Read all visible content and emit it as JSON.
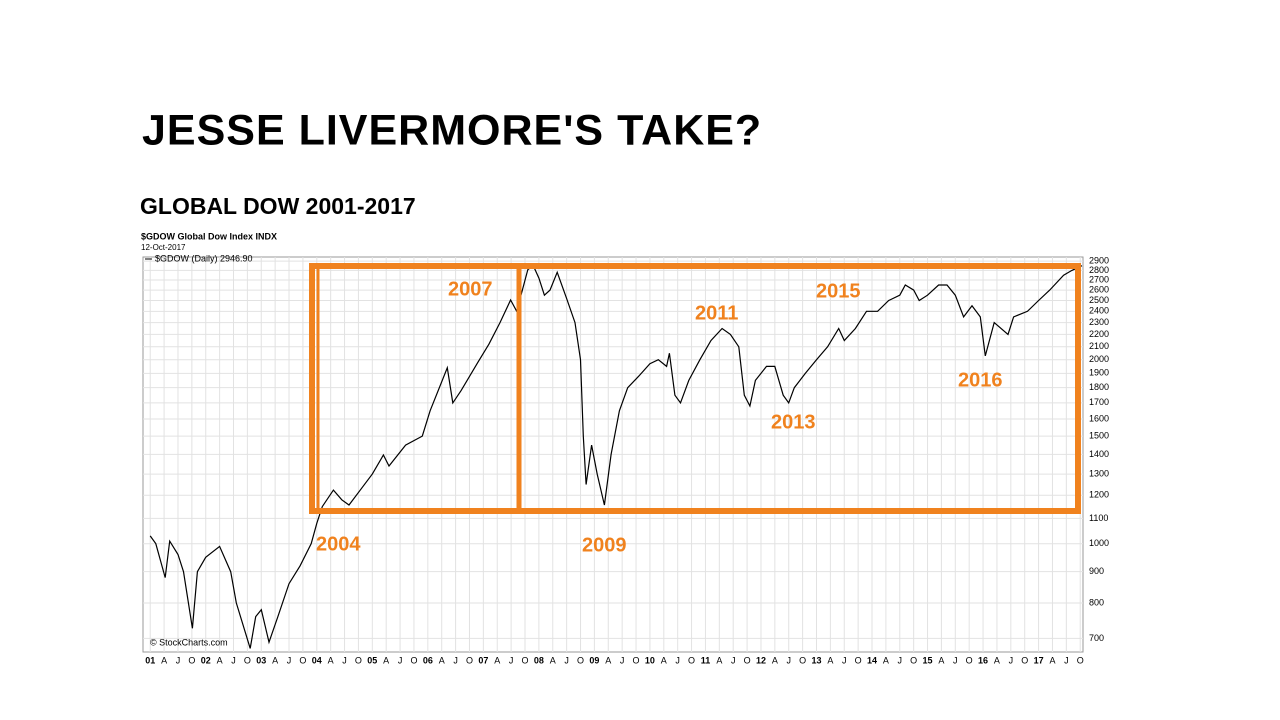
{
  "chart_data": {
    "type": "line",
    "title": "JESSE LIVERMORE'S TAKE?",
    "subtitle": "GLOBAL DOW 2001-2017",
    "header": "$GDOW Global Dow Index INDX",
    "date": "12-Oct-2017",
    "watermark": "© StockCharts.com",
    "annotations": [
      "2007",
      "2011",
      "2015",
      "2004",
      "2009",
      "2013",
      "2016"
    ],
    "log_scale": true,
    "grid": true,
    "x": [
      2001.0,
      2001.1,
      2001.27,
      2001.35,
      2001.5,
      2001.6,
      2001.76,
      2001.85,
      2002.0,
      2002.25,
      2002.45,
      2002.55,
      2002.8,
      2002.9,
      2003.0,
      2003.14,
      2003.3,
      2003.5,
      2003.7,
      2003.9,
      2004.0,
      2004.1,
      2004.3,
      2004.45,
      2004.58,
      2004.8,
      2005.0,
      2005.2,
      2005.3,
      2005.6,
      2005.9,
      2006.04,
      2006.35,
      2006.45,
      2006.6,
      2006.9,
      2007.1,
      2007.3,
      2007.49,
      2007.6,
      2007.8,
      2007.9,
      2008.0,
      2008.1,
      2008.2,
      2008.33,
      2008.5,
      2008.65,
      2008.75,
      2008.8,
      2008.85,
      2008.95,
      2009.05,
      2009.18,
      2009.3,
      2009.45,
      2009.6,
      2009.8,
      2010.0,
      2010.15,
      2010.3,
      2010.35,
      2010.45,
      2010.55,
      2010.7,
      2010.9,
      2011.1,
      2011.3,
      2011.45,
      2011.6,
      2011.7,
      2011.8,
      2011.9,
      2012.1,
      2012.25,
      2012.4,
      2012.5,
      2012.6,
      2012.8,
      2013.0,
      2013.2,
      2013.4,
      2013.5,
      2013.7,
      2013.9,
      2014.1,
      2014.3,
      2014.5,
      2014.6,
      2014.75,
      2014.85,
      2015.0,
      2015.2,
      2015.35,
      2015.5,
      2015.65,
      2015.8,
      2015.95,
      2016.04,
      2016.2,
      2016.45,
      2016.55,
      2016.8,
      2017.0,
      2017.2,
      2017.45,
      2017.6,
      2017.78
    ],
    "series": [
      {
        "name": "$GDOW (Daily) 2946.90",
        "color": "#000000",
        "values": [
          1030,
          1000,
          880,
          1010,
          960,
          900,
          727,
          900,
          950,
          990,
          900,
          800,
          674,
          760,
          780,
          690,
          760,
          860,
          920,
          1000,
          1080,
          1150,
          1224,
          1180,
          1157,
          1230,
          1300,
          1397,
          1340,
          1450,
          1500,
          1650,
          1940,
          1700,
          1780,
          1980,
          2120,
          2300,
          2505,
          2400,
          2807,
          2850,
          2720,
          2550,
          2600,
          2780,
          2520,
          2300,
          2000,
          1500,
          1250,
          1450,
          1300,
          1157,
          1400,
          1650,
          1800,
          1880,
          1970,
          2000,
          1950,
          2050,
          1750,
          1700,
          1850,
          2000,
          2150,
          2250,
          2200,
          2100,
          1750,
          1680,
          1850,
          1950,
          1950,
          1750,
          1700,
          1800,
          1900,
          2000,
          2100,
          2250,
          2150,
          2250,
          2400,
          2400,
          2500,
          2550,
          2650,
          2600,
          2500,
          2550,
          2650,
          2650,
          2550,
          2350,
          2450,
          2350,
          2029,
          2300,
          2200,
          2350,
          2400,
          2500,
          2600,
          2750,
          2800,
          2850
        ]
      }
    ],
    "xlim": [
      2000.87,
      2017.8
    ],
    "ylim": [
      665,
      2945
    ],
    "yticks": [
      700,
      800,
      900,
      1000,
      1100,
      1200,
      1300,
      1400,
      1500,
      1600,
      1700,
      1800,
      1900,
      2000,
      2100,
      2200,
      2300,
      2400,
      2500,
      2600,
      2700,
      2800,
      2900
    ],
    "xticks": [
      {
        "value": 2001,
        "label": "01"
      },
      {
        "value": 2001.25,
        "label": "A"
      },
      {
        "value": 2001.5,
        "label": "J"
      },
      {
        "value": 2001.75,
        "label": "O"
      },
      {
        "value": 2002,
        "label": "02"
      },
      {
        "value": 2002.25,
        "label": "A"
      },
      {
        "value": 2002.5,
        "label": "J"
      },
      {
        "value": 2002.75,
        "label": "O"
      },
      {
        "value": 2003,
        "label": "03"
      },
      {
        "value": 2003.25,
        "label": "A"
      },
      {
        "value": 2003.5,
        "label": "J"
      },
      {
        "value": 2003.75,
        "label": "O"
      },
      {
        "value": 2004,
        "label": "04"
      },
      {
        "value": 2004.25,
        "label": "A"
      },
      {
        "value": 2004.5,
        "label": "J"
      },
      {
        "value": 2004.75,
        "label": "O"
      },
      {
        "value": 2005,
        "label": "05"
      },
      {
        "value": 2005.25,
        "label": "A"
      },
      {
        "value": 2005.5,
        "label": "J"
      },
      {
        "value": 2005.75,
        "label": "O"
      },
      {
        "value": 2006,
        "label": "06"
      },
      {
        "value": 2006.25,
        "label": "A"
      },
      {
        "value": 2006.5,
        "label": "J"
      },
      {
        "value": 2006.75,
        "label": "O"
      },
      {
        "value": 2007,
        "label": "07"
      },
      {
        "value": 2007.25,
        "label": "A"
      },
      {
        "value": 2007.5,
        "label": "J"
      },
      {
        "value": 2007.75,
        "label": "O"
      },
      {
        "value": 2008,
        "label": "08"
      },
      {
        "value": 2008.25,
        "label": "A"
      },
      {
        "value": 2008.5,
        "label": "J"
      },
      {
        "value": 2008.75,
        "label": "O"
      },
      {
        "value": 2009,
        "label": "09"
      },
      {
        "value": 2009.25,
        "label": "A"
      },
      {
        "value": 2009.5,
        "label": "J"
      },
      {
        "value": 2009.75,
        "label": "O"
      },
      {
        "value": 2010,
        "label": "10"
      },
      {
        "value": 2010.25,
        "label": "A"
      },
      {
        "value": 2010.5,
        "label": "J"
      },
      {
        "value": 2010.75,
        "label": "O"
      },
      {
        "value": 2011,
        "label": "11"
      },
      {
        "value": 2011.25,
        "label": "A"
      },
      {
        "value": 2011.5,
        "label": "J"
      },
      {
        "value": 2011.75,
        "label": "O"
      },
      {
        "value": 2012,
        "label": "12"
      },
      {
        "value": 2012.25,
        "label": "A"
      },
      {
        "value": 2012.5,
        "label": "J"
      },
      {
        "value": 2012.75,
        "label": "O"
      },
      {
        "value": 2013,
        "label": "13"
      },
      {
        "value": 2013.25,
        "label": "A"
      },
      {
        "value": 2013.5,
        "label": "J"
      },
      {
        "value": 2013.75,
        "label": "O"
      },
      {
        "value": 2014,
        "label": "14"
      },
      {
        "value": 2014.25,
        "label": "A"
      },
      {
        "value": 2014.5,
        "label": "J"
      },
      {
        "value": 2014.75,
        "label": "O"
      },
      {
        "value": 2015,
        "label": "15"
      },
      {
        "value": 2015.25,
        "label": "A"
      },
      {
        "value": 2015.5,
        "label": "J"
      },
      {
        "value": 2015.75,
        "label": "O"
      },
      {
        "value": 2016,
        "label": "16"
      },
      {
        "value": 2016.25,
        "label": "A"
      },
      {
        "value": 2016.5,
        "label": "J"
      },
      {
        "value": 2016.75,
        "label": "O"
      },
      {
        "value": 2017,
        "label": "17"
      },
      {
        "value": 2017.25,
        "label": "A"
      },
      {
        "value": 2017.5,
        "label": "J"
      },
      {
        "value": 2017.75,
        "label": "O"
      }
    ]
  }
}
